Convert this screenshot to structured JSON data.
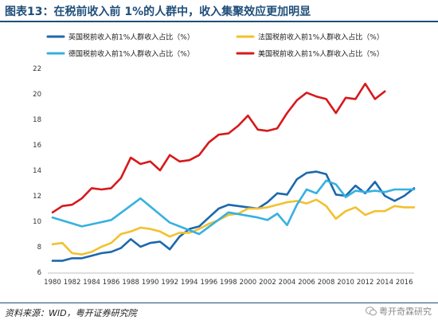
{
  "figure": {
    "title": "图表13：在税前收入前 1%的人群中，收入集聚效应更加明显",
    "source": "资料来源：WID，粤开证券研究院",
    "watermark": "粤开奇霖研究"
  },
  "colors": {
    "title": "#1f4e79",
    "uk": "#1c68ad",
    "france": "#f2c12e",
    "germany": "#35b1e0",
    "usa": "#d7191c"
  },
  "chart_data": {
    "type": "line",
    "title": "",
    "xlabel": "",
    "ylabel": "",
    "xlim": [
      1980,
      2017
    ],
    "ylim": [
      6,
      22
    ],
    "y_ticks": [
      6,
      8,
      10,
      12,
      14,
      16,
      18,
      20,
      22
    ],
    "x_ticks": [
      1980,
      1982,
      1984,
      1986,
      1988,
      1990,
      1992,
      1994,
      1996,
      1998,
      2000,
      2002,
      2004,
      2006,
      2008,
      2010,
      2012,
      2014,
      2016
    ],
    "grid": false,
    "legend_position": "top",
    "series": [
      {
        "name": "英国税前收入前1%人群收入占比（%）",
        "color_key": "uk",
        "x": [
          1980,
          1981,
          1982,
          1983,
          1984,
          1985,
          1986,
          1987,
          1988,
          1989,
          1990,
          1991,
          1992,
          1993,
          1994,
          1995,
          1996,
          1997,
          1998,
          1999,
          2000,
          2001,
          2002,
          2003,
          2004,
          2005,
          2006,
          2007,
          2008,
          2009,
          2010,
          2011,
          2012,
          2013,
          2014,
          2015,
          2016,
          2017
        ],
        "y": [
          6.9,
          6.9,
          7.1,
          7.1,
          7.3,
          7.5,
          7.6,
          7.9,
          8.6,
          8.0,
          8.3,
          8.4,
          7.8,
          8.8,
          9.4,
          9.6,
          10.3,
          11.0,
          11.3,
          11.2,
          11.1,
          11.0,
          11.5,
          12.2,
          12.1,
          13.3,
          13.8,
          13.9,
          13.7,
          12.1,
          12.0,
          12.8,
          12.2,
          13.1,
          12.0,
          11.6,
          12.0,
          12.6
        ]
      },
      {
        "name": "法国税前收入前1%人群收入占比（%）",
        "color_key": "france",
        "x": [
          1980,
          1981,
          1982,
          1983,
          1984,
          1985,
          1986,
          1987,
          1988,
          1989,
          1990,
          1991,
          1992,
          1993,
          1994,
          1995,
          1996,
          1997,
          1998,
          1999,
          2000,
          2001,
          2002,
          2003,
          2004,
          2005,
          2006,
          2007,
          2008,
          2009,
          2010,
          2011,
          2012,
          2013,
          2014,
          2015,
          2016,
          2017
        ],
        "y": [
          8.2,
          8.3,
          7.5,
          7.4,
          7.6,
          8.0,
          8.3,
          9.0,
          9.2,
          9.5,
          9.4,
          9.2,
          8.8,
          9.1,
          9.1,
          9.4,
          9.8,
          10.1,
          10.5,
          10.6,
          11.0,
          11.0,
          11.1,
          11.3,
          11.5,
          11.6,
          11.4,
          11.7,
          11.2,
          10.2,
          10.8,
          11.1,
          10.5,
          10.8,
          10.8,
          11.2,
          11.1,
          11.1
        ]
      },
      {
        "name": "德国税前收入前1%人群收入占比（%）",
        "color_key": "germany",
        "x": [
          1980,
          1983,
          1986,
          1989,
          1992,
          1995,
          1998,
          2001,
          2002,
          2003,
          2004,
          2005,
          2006,
          2007,
          2008,
          2009,
          2010,
          2011,
          2012,
          2013,
          2014,
          2015,
          2016,
          2017
        ],
        "y": [
          10.3,
          9.6,
          10.1,
          11.8,
          9.9,
          9.0,
          10.7,
          10.3,
          10.1,
          10.6,
          9.7,
          11.3,
          12.5,
          12.2,
          13.2,
          12.9,
          11.9,
          12.4,
          12.3,
          12.4,
          12.3,
          12.5,
          12.5,
          12.5
        ]
      },
      {
        "name": "美国税前收入前1%人群收入占比（%）",
        "color_key": "usa",
        "x": [
          1980,
          1981,
          1982,
          1983,
          1984,
          1985,
          1986,
          1987,
          1988,
          1989,
          1990,
          1991,
          1992,
          1993,
          1994,
          1995,
          1996,
          1997,
          1998,
          1999,
          2000,
          2001,
          2002,
          2003,
          2004,
          2005,
          2006,
          2007,
          2008,
          2009,
          2010,
          2011,
          2012,
          2013,
          2014
        ],
        "y": [
          10.7,
          11.2,
          11.3,
          11.8,
          12.6,
          12.5,
          12.6,
          13.4,
          15.0,
          14.5,
          14.7,
          14.0,
          15.2,
          14.7,
          14.8,
          15.2,
          16.2,
          16.8,
          16.9,
          17.5,
          18.3,
          17.2,
          17.1,
          17.3,
          18.5,
          19.5,
          20.1,
          19.8,
          19.6,
          18.5,
          19.7,
          19.6,
          20.8,
          19.6,
          20.2
        ]
      }
    ]
  }
}
